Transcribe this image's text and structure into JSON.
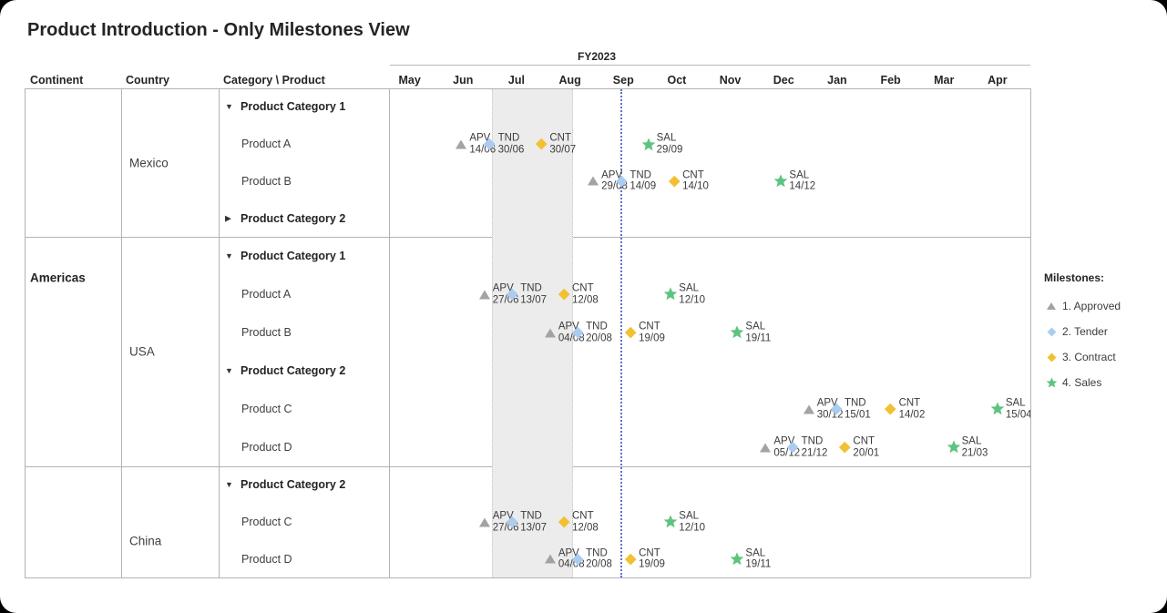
{
  "title": "Product Introduction - Only Milestones View",
  "columns": {
    "continent": "Continent",
    "country": "Country",
    "category_product": "Category \\ Product"
  },
  "legend": {
    "title": "Milestones:",
    "items": [
      {
        "label": "1. Approved",
        "marker": "triangle",
        "color": "#a3a3a3"
      },
      {
        "label": "2. Tender",
        "marker": "diamond",
        "color": "#abccf1"
      },
      {
        "label": "3. Contract",
        "marker": "diamond",
        "color": "#f2c133"
      },
      {
        "label": "4. Sales",
        "marker": "star",
        "color": "#5cc47e"
      }
    ]
  },
  "colors": {
    "approved": "#a3a3a3",
    "tender": "#abccf1",
    "contract": "#f2c133",
    "sales": "#5cc47e",
    "highlight_band": "#ececec",
    "reference_line": "#5a74cc"
  },
  "marker_shapes": {
    "approved": "triangle",
    "tender": "diamond",
    "contract": "diamond",
    "sales": "star"
  },
  "chart_data": {
    "type": "gantt-milestone",
    "title": "Product Introduction - Only Milestones View",
    "fiscal_year": "FY2023",
    "months": [
      "May",
      "Jun",
      "Jul",
      "Aug",
      "Sep",
      "Oct",
      "Nov",
      "Dec",
      "Jan",
      "Feb",
      "Mar",
      "Apr"
    ],
    "highlight_band": {
      "from": "01/07",
      "to": "16/08"
    },
    "reference_line_date": "14/09",
    "milestone_codes": {
      "APV": "1. Approved",
      "TND": "2. Tender",
      "CNT": "3. Contract",
      "SAL": "4. Sales"
    },
    "continents": [
      {
        "label": "Americas",
        "countries": [
          {
            "name": "Mexico",
            "rows": [
              {
                "kind": "category",
                "label": "Product Category 1",
                "state": "expanded"
              },
              {
                "kind": "product",
                "label": "Product A",
                "milestones": [
                  {
                    "code": "APV",
                    "date": "14/06",
                    "type": "approved"
                  },
                  {
                    "code": "TND",
                    "date": "30/06",
                    "type": "tender"
                  },
                  {
                    "code": "CNT",
                    "date": "30/07",
                    "type": "contract"
                  },
                  {
                    "code": "SAL",
                    "date": "29/09",
                    "type": "sales"
                  }
                ]
              },
              {
                "kind": "product",
                "label": "Product B",
                "milestones": [
                  {
                    "code": "APV",
                    "date": "29/08",
                    "type": "approved"
                  },
                  {
                    "code": "TND",
                    "date": "14/09",
                    "type": "tender"
                  },
                  {
                    "code": "CNT",
                    "date": "14/10",
                    "type": "contract"
                  },
                  {
                    "code": "SAL",
                    "date": "14/12",
                    "type": "sales"
                  }
                ]
              },
              {
                "kind": "category",
                "label": "Product Category 2",
                "state": "collapsed"
              }
            ]
          },
          {
            "name": "USA",
            "rows": [
              {
                "kind": "category",
                "label": "Product Category 1",
                "state": "expanded"
              },
              {
                "kind": "product",
                "label": "Product A",
                "milestones": [
                  {
                    "code": "APV",
                    "date": "27/06",
                    "type": "approved"
                  },
                  {
                    "code": "TND",
                    "date": "13/07",
                    "type": "tender"
                  },
                  {
                    "code": "CNT",
                    "date": "12/08",
                    "type": "contract"
                  },
                  {
                    "code": "SAL",
                    "date": "12/10",
                    "type": "sales"
                  }
                ]
              },
              {
                "kind": "product",
                "label": "Product B",
                "milestones": [
                  {
                    "code": "APV",
                    "date": "04/08",
                    "type": "approved"
                  },
                  {
                    "code": "TND",
                    "date": "20/08",
                    "type": "tender"
                  },
                  {
                    "code": "CNT",
                    "date": "19/09",
                    "type": "contract"
                  },
                  {
                    "code": "SAL",
                    "date": "19/11",
                    "type": "sales"
                  }
                ]
              },
              {
                "kind": "category",
                "label": "Product Category 2",
                "state": "expanded"
              },
              {
                "kind": "product",
                "label": "Product C",
                "milestones": [
                  {
                    "code": "APV",
                    "date": "30/12",
                    "type": "approved"
                  },
                  {
                    "code": "TND",
                    "date": "15/01",
                    "type": "tender"
                  },
                  {
                    "code": "CNT",
                    "date": "14/02",
                    "type": "contract"
                  },
                  {
                    "code": "SAL",
                    "date": "15/04",
                    "type": "sales"
                  }
                ]
              },
              {
                "kind": "product",
                "label": "Product D",
                "milestones": [
                  {
                    "code": "APV",
                    "date": "05/12",
                    "type": "approved"
                  },
                  {
                    "code": "TND",
                    "date": "21/12",
                    "type": "tender"
                  },
                  {
                    "code": "CNT",
                    "date": "20/01",
                    "type": "contract"
                  },
                  {
                    "code": "SAL",
                    "date": "21/03",
                    "type": "sales"
                  }
                ]
              }
            ]
          }
        ]
      },
      {
        "label": "",
        "countries": [
          {
            "name": "China",
            "rows": [
              {
                "kind": "category",
                "label": "Product Category 2",
                "state": "expanded"
              },
              {
                "kind": "product",
                "label": "Product C",
                "milestones": [
                  {
                    "code": "APV",
                    "date": "27/06",
                    "type": "approved"
                  },
                  {
                    "code": "TND",
                    "date": "13/07",
                    "type": "tender"
                  },
                  {
                    "code": "CNT",
                    "date": "12/08",
                    "type": "contract"
                  },
                  {
                    "code": "SAL",
                    "date": "12/10",
                    "type": "sales"
                  }
                ]
              },
              {
                "kind": "product",
                "label": "Product D",
                "milestones": [
                  {
                    "code": "APV",
                    "date": "04/08",
                    "type": "approved"
                  },
                  {
                    "code": "TND",
                    "date": "20/08",
                    "type": "tender"
                  },
                  {
                    "code": "CNT",
                    "date": "19/09",
                    "type": "contract"
                  },
                  {
                    "code": "SAL",
                    "date": "19/11",
                    "type": "sales"
                  }
                ]
              }
            ]
          }
        ]
      }
    ]
  }
}
